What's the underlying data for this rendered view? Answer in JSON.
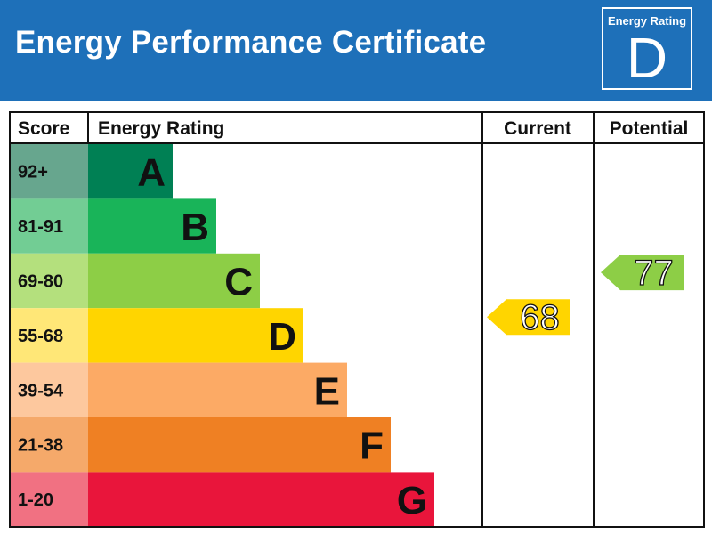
{
  "header": {
    "title": "Energy Performance Certificate",
    "badge_label": "Energy Rating",
    "badge_value": "D"
  },
  "table": {
    "col_score": "Score",
    "col_rating": "Energy Rating",
    "col_current": "Current",
    "col_potential": "Potential"
  },
  "chart_data": {
    "type": "bar",
    "categories": [
      "A",
      "B",
      "C",
      "D",
      "E",
      "F",
      "G"
    ],
    "score_ranges": [
      "92+",
      "81-91",
      "69-80",
      "55-68",
      "39-54",
      "21-38",
      "1-20"
    ],
    "band_colors": [
      "#008054",
      "#19b459",
      "#8dce46",
      "#ffd500",
      "#fcaa65",
      "#ef8023",
      "#e9153b"
    ],
    "score_cell_colors": [
      "#67a68e",
      "#72cd94",
      "#b4e07d",
      "#ffe777",
      "#fdc89e",
      "#f5a96a",
      "#f17182"
    ],
    "current": {
      "value": 68,
      "label": "68",
      "band": "D",
      "color": "#ffd500"
    },
    "potential": {
      "value": 77,
      "label": "77",
      "band": "C",
      "color": "#8dce46"
    }
  },
  "colors": {
    "header_blue": "#1e70b9",
    "border": "#111111"
  }
}
